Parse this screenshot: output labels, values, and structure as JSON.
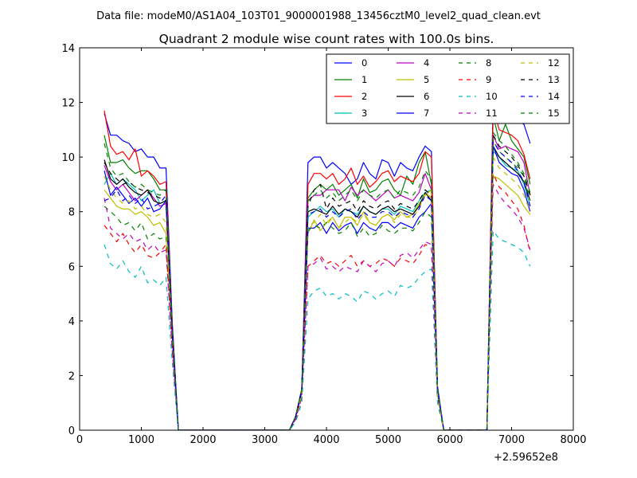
{
  "page": {
    "suptitle": "Data file: modeM0/AS1A04_103T01_9000001988_13456cztM0_level2_quad_clean.evt"
  },
  "chart_data": {
    "type": "line",
    "title": "Quadrant 2 module wise count rates with 100.0s bins.",
    "xlabel": "",
    "ylabel": "",
    "x_offset_label": "+2.59652e8",
    "xlim": [
      0,
      8000
    ],
    "ylim": [
      0,
      14
    ],
    "xticks": [
      0,
      1000,
      2000,
      3000,
      4000,
      5000,
      6000,
      7000,
      8000
    ],
    "yticks": [
      0,
      2,
      4,
      6,
      8,
      10,
      12,
      14
    ],
    "grid": false,
    "legend_placement": "top-right",
    "legend_columns": 4,
    "x": [
      400,
      500,
      600,
      700,
      800,
      900,
      1000,
      1100,
      1200,
      1300,
      1400,
      1500,
      1600,
      1700,
      1800,
      1900,
      2000,
      2100,
      2200,
      2300,
      2400,
      2500,
      2600,
      2700,
      2800,
      2900,
      3000,
      3100,
      3200,
      3300,
      3400,
      3500,
      3600,
      3700,
      3800,
      3900,
      4000,
      4100,
      4200,
      4300,
      4400,
      4500,
      4600,
      4700,
      4800,
      4900,
      5000,
      5100,
      5200,
      5300,
      5400,
      5500,
      5600,
      5700,
      5800,
      5900,
      6000,
      6100,
      6200,
      6300,
      6400,
      6500,
      6600,
      6700,
      6800,
      6900,
      7000,
      7100,
      7200,
      7300
    ],
    "series": [
      {
        "name": "0",
        "color": "#0000ff",
        "dash": "solid",
        "values": [
          11.6,
          10.8,
          10.8,
          10.6,
          10.5,
          10.2,
          10.3,
          10.0,
          10.0,
          9.6,
          9.6,
          4.0,
          0,
          0,
          0,
          0,
          0,
          0,
          0,
          0,
          0,
          0,
          0,
          0,
          0,
          0,
          0,
          0,
          0,
          0,
          0,
          0.5,
          1.5,
          9.8,
          10.0,
          10.0,
          9.6,
          9.8,
          9.6,
          9.4,
          9.0,
          9.2,
          9.8,
          9.4,
          9.2,
          9.9,
          9.8,
          9.3,
          9.8,
          9.6,
          9.5,
          10.0,
          10.4,
          10.2,
          1.6,
          0,
          0,
          0,
          0,
          0,
          0,
          0,
          0,
          12.1,
          12.0,
          11.8,
          11.5,
          11.3,
          11.2,
          10.5
        ]
      },
      {
        "name": "1",
        "color": "#008000",
        "dash": "solid",
        "values": [
          10.8,
          9.8,
          9.8,
          9.9,
          9.6,
          9.4,
          9.5,
          9.5,
          9.2,
          8.8,
          8.8,
          3.8,
          0,
          0,
          0,
          0,
          0,
          0,
          0,
          0,
          0,
          0,
          0,
          0,
          0,
          0,
          0,
          0,
          0,
          0,
          0,
          0.5,
          1.5,
          8.5,
          8.8,
          9.0,
          8.8,
          9.0,
          8.6,
          8.8,
          9.0,
          8.5,
          9.2,
          8.7,
          8.8,
          9.1,
          9.2,
          8.8,
          8.6,
          9.3,
          9.0,
          9.8,
          10.2,
          9.0,
          1.5,
          0,
          0,
          0,
          0,
          0,
          0,
          0,
          0,
          11.5,
          10.6,
          11.2,
          10.6,
          10.3,
          10.0,
          9.0
        ]
      },
      {
        "name": "2",
        "color": "#ff0000",
        "dash": "solid",
        "values": [
          11.7,
          10.4,
          10.1,
          10.2,
          9.9,
          10.3,
          9.3,
          9.5,
          9.3,
          9.0,
          9.1,
          3.8,
          0,
          0,
          0,
          0,
          0,
          0,
          0,
          0,
          0,
          0,
          0,
          0,
          0,
          0,
          0,
          0,
          0,
          0,
          0,
          0.5,
          1.5,
          9.0,
          9.4,
          9.4,
          9.2,
          9.4,
          9.0,
          9.2,
          9.6,
          9.0,
          9.3,
          8.9,
          9.1,
          9.4,
          9.5,
          9.1,
          9.3,
          9.2,
          9.1,
          9.4,
          10.2,
          10.0,
          1.5,
          0,
          0,
          0,
          0,
          0,
          0,
          0,
          0,
          11.8,
          11.0,
          10.9,
          10.8,
          10.6,
          10.1,
          9.2
        ]
      },
      {
        "name": "3",
        "color": "#00bfbf",
        "dash": "solid",
        "values": [
          9.0,
          9.4,
          9.0,
          9.2,
          9.0,
          8.8,
          8.4,
          8.6,
          8.8,
          8.3,
          8.4,
          3.6,
          0,
          0,
          0,
          0,
          0,
          0,
          0,
          0,
          0,
          0,
          0,
          0,
          0,
          0,
          0,
          0,
          0,
          0,
          0,
          0.5,
          1.5,
          7.8,
          8.0,
          8.2,
          8.0,
          8.1,
          7.8,
          8.1,
          8.0,
          7.9,
          8.2,
          8.0,
          7.9,
          8.1,
          8.1,
          7.9,
          8.2,
          8.1,
          8.0,
          8.4,
          8.7,
          8.8,
          1.5,
          0,
          0,
          0,
          0,
          0,
          0,
          0,
          0,
          10.2,
          10.0,
          9.7,
          9.6,
          9.5,
          9.0,
          8.2
        ]
      },
      {
        "name": "4",
        "color": "#bf00bf",
        "dash": "solid",
        "values": [
          9.7,
          9.1,
          8.8,
          9.0,
          8.7,
          8.4,
          8.6,
          8.8,
          8.5,
          8.2,
          8.3,
          3.6,
          0,
          0,
          0,
          0,
          0,
          0,
          0,
          0,
          0,
          0,
          0,
          0,
          0,
          0,
          0,
          0,
          0,
          0,
          0,
          0.5,
          1.4,
          8.4,
          8.6,
          8.6,
          8.8,
          8.8,
          8.8,
          8.4,
          8.9,
          8.6,
          8.8,
          8.6,
          8.4,
          8.6,
          8.8,
          8.5,
          8.6,
          8.5,
          8.4,
          8.7,
          9.4,
          8.8,
          1.4,
          0,
          0,
          0,
          0,
          0,
          0,
          0,
          0,
          10.8,
          10.3,
          10.4,
          10.3,
          10.2,
          9.8,
          8.6
        ]
      },
      {
        "name": "5",
        "color": "#bfbf00",
        "dash": "solid",
        "values": [
          8.8,
          8.5,
          8.2,
          8.1,
          8.1,
          7.9,
          8.0,
          7.8,
          7.5,
          7.6,
          7.2,
          3.4,
          0,
          0,
          0,
          0,
          0,
          0,
          0,
          0,
          0,
          0,
          0,
          0,
          0,
          0,
          0,
          0,
          0,
          0,
          0,
          0.5,
          1.4,
          7.2,
          7.7,
          7.3,
          7.6,
          7.8,
          7.4,
          7.8,
          7.8,
          7.5,
          8.0,
          7.6,
          7.5,
          7.8,
          7.9,
          7.7,
          8.0,
          7.8,
          7.9,
          8.3,
          8.6,
          8.8,
          1.4,
          0,
          0,
          0,
          0,
          0,
          0,
          0,
          0,
          9.3,
          9.2,
          9.0,
          8.8,
          8.6,
          8.2,
          7.9
        ]
      },
      {
        "name": "6",
        "color": "#000000",
        "dash": "solid",
        "values": [
          9.9,
          9.2,
          9.0,
          9.2,
          8.9,
          8.7,
          8.6,
          8.8,
          8.4,
          8.3,
          8.4,
          3.6,
          0,
          0,
          0,
          0,
          0,
          0,
          0,
          0,
          0,
          0,
          0,
          0,
          0,
          0,
          0,
          0,
          0,
          0,
          0,
          0.5,
          1.5,
          8.0,
          8.1,
          8.0,
          7.9,
          8.2,
          7.9,
          8.1,
          8.0,
          7.8,
          8.2,
          8.0,
          7.9,
          8.1,
          8.2,
          8.0,
          8.1,
          8.0,
          7.9,
          8.2,
          8.7,
          8.4,
          1.5,
          0,
          0,
          0,
          0,
          0,
          0,
          0,
          0,
          10.4,
          10.0,
          9.8,
          9.6,
          9.4,
          9.1,
          8.4
        ]
      },
      {
        "name": "7",
        "color": "#0000ff",
        "dash": "solid",
        "values": [
          9.5,
          8.6,
          8.9,
          8.6,
          8.3,
          8.5,
          8.2,
          8.5,
          8.0,
          8.1,
          8.4,
          3.5,
          0,
          0,
          0,
          0,
          0,
          0,
          0,
          0,
          0,
          0,
          0,
          0,
          0,
          0,
          0,
          0,
          0,
          0,
          0,
          0.5,
          1.4,
          7.4,
          7.4,
          7.6,
          7.2,
          7.6,
          7.3,
          7.5,
          7.6,
          7.2,
          7.6,
          7.4,
          7.3,
          7.6,
          7.6,
          7.4,
          7.6,
          7.5,
          7.4,
          7.8,
          8.0,
          8.3,
          1.4,
          0,
          0,
          0,
          0,
          0,
          0,
          0,
          0,
          10.4,
          9.8,
          9.6,
          9.4,
          9.3,
          8.8,
          8.0
        ]
      },
      {
        "name": "8",
        "color": "#008000",
        "dash": "dashed",
        "values": [
          8.2,
          8.0,
          7.8,
          7.5,
          7.6,
          7.3,
          7.6,
          7.0,
          7.2,
          7.0,
          7.1,
          3.2,
          0,
          0,
          0,
          0,
          0,
          0,
          0,
          0,
          0,
          0,
          0,
          0,
          0,
          0,
          0,
          0,
          0,
          0,
          0,
          0.4,
          1.3,
          7.3,
          7.5,
          7.4,
          7.6,
          7.4,
          7.2,
          7.3,
          7.6,
          7.1,
          7.4,
          7.1,
          7.2,
          7.5,
          7.3,
          7.2,
          7.4,
          7.4,
          7.3,
          7.6,
          8.0,
          7.8,
          1.3,
          0,
          0,
          0,
          0,
          0,
          0,
          0,
          0,
          10.6,
          10.2,
          10.0,
          9.8,
          9.6,
          9.3,
          8.4
        ]
      },
      {
        "name": "9",
        "color": "#ff0000",
        "dash": "dashed",
        "values": [
          7.5,
          7.2,
          6.9,
          7.2,
          6.8,
          6.5,
          6.8,
          6.4,
          6.3,
          6.5,
          6.8,
          3.0,
          0,
          0,
          0,
          0,
          0,
          0,
          0,
          0,
          0,
          0,
          0,
          0,
          0,
          0,
          0,
          0,
          0,
          0,
          0,
          0.4,
          1.2,
          6.0,
          6.2,
          6.4,
          6.1,
          6.2,
          6.0,
          6.2,
          6.4,
          6.0,
          6.2,
          6.0,
          6.1,
          6.3,
          6.2,
          6.0,
          6.3,
          6.2,
          6.1,
          6.4,
          6.8,
          6.7,
          1.2,
          0,
          0,
          0,
          0,
          0,
          0,
          0,
          0,
          9.4,
          8.9,
          8.7,
          8.4,
          8.1,
          7.5,
          6.5
        ]
      },
      {
        "name": "10",
        "color": "#00bfbf",
        "dash": "dashed",
        "values": [
          6.8,
          6.1,
          5.9,
          6.2,
          5.8,
          5.6,
          6.0,
          5.4,
          5.5,
          5.3,
          5.6,
          2.5,
          0,
          0,
          0,
          0,
          0,
          0,
          0,
          0,
          0,
          0,
          0,
          0,
          0,
          0,
          0,
          0,
          0,
          0,
          0,
          0.3,
          1.0,
          4.8,
          5.1,
          5.2,
          4.9,
          5.0,
          4.8,
          5.0,
          4.9,
          4.7,
          5.1,
          5.0,
          4.8,
          5.0,
          5.1,
          4.9,
          5.3,
          5.2,
          5.3,
          5.6,
          5.8,
          5.9,
          1.0,
          0,
          0,
          0,
          0,
          0,
          0,
          0,
          0,
          7.3,
          7.0,
          6.9,
          6.8,
          6.7,
          6.5,
          6.0
        ]
      },
      {
        "name": "11",
        "color": "#bf00bf",
        "dash": "dashed",
        "values": [
          8.5,
          7.4,
          7.2,
          7.0,
          7.2,
          6.9,
          7.0,
          6.6,
          6.8,
          6.5,
          6.6,
          2.9,
          0,
          0,
          0,
          0,
          0,
          0,
          0,
          0,
          0,
          0,
          0,
          0,
          0,
          0,
          0,
          0,
          0,
          0,
          0,
          0.4,
          1.2,
          6.0,
          6.1,
          6.3,
          5.9,
          6.0,
          5.8,
          6.0,
          5.9,
          5.8,
          6.2,
          6.0,
          5.8,
          6.1,
          6.2,
          6.0,
          6.4,
          6.5,
          6.3,
          6.6,
          6.9,
          6.8,
          1.2,
          0,
          0,
          0,
          0,
          0,
          0,
          0,
          0,
          9.0,
          8.6,
          8.3,
          8.1,
          7.8,
          7.4,
          6.6
        ]
      },
      {
        "name": "12",
        "color": "#bfbf00",
        "dash": "dashed",
        "values": [
          9.3,
          8.8,
          8.5,
          8.3,
          8.4,
          8.1,
          8.2,
          7.9,
          7.8,
          7.9,
          7.6,
          3.4,
          0,
          0,
          0,
          0,
          0,
          0,
          0,
          0,
          0,
          0,
          0,
          0,
          0,
          0,
          0,
          0,
          0,
          0,
          0,
          0.5,
          1.3,
          7.5,
          7.6,
          7.9,
          7.5,
          7.8,
          7.4,
          7.6,
          7.8,
          7.6,
          7.9,
          7.6,
          7.5,
          7.8,
          7.9,
          7.6,
          7.9,
          7.8,
          7.8,
          8.1,
          8.7,
          8.5,
          1.3,
          0,
          0,
          0,
          0,
          0,
          0,
          0,
          0,
          10.0,
          9.6,
          9.4,
          9.2,
          9.0,
          8.6,
          8.0
        ]
      },
      {
        "name": "13",
        "color": "#000000",
        "dash": "dashed",
        "values": [
          9.8,
          9.4,
          9.2,
          9.0,
          9.1,
          8.9,
          8.8,
          8.7,
          8.6,
          8.5,
          8.4,
          3.6,
          0,
          0,
          0,
          0,
          0,
          0,
          0,
          0,
          0,
          0,
          0,
          0,
          0,
          0,
          0,
          0,
          0,
          0,
          0,
          0.5,
          1.5,
          8.2,
          8.8,
          9.0,
          8.1,
          8.5,
          8.2,
          8.3,
          8.4,
          8.0,
          8.4,
          8.2,
          8.1,
          8.3,
          8.4,
          8.1,
          8.3,
          8.2,
          8.1,
          8.4,
          8.8,
          8.6,
          1.5,
          0,
          0,
          0,
          0,
          0,
          0,
          0,
          0,
          10.8,
          10.4,
          10.2,
          10.0,
          9.7,
          9.3,
          8.6
        ]
      },
      {
        "name": "14",
        "color": "#0000ff",
        "dash": "dashed",
        "values": [
          8.4,
          8.5,
          8.8,
          8.4,
          8.6,
          8.3,
          8.5,
          8.1,
          8.2,
          8.3,
          8.6,
          3.6,
          0,
          0,
          0,
          0,
          0,
          0,
          0,
          0,
          0,
          0,
          0,
          0,
          0,
          0,
          0,
          0,
          0,
          0,
          0,
          0.5,
          1.5,
          7.9,
          8.0,
          8.1,
          7.8,
          8.0,
          7.8,
          8.0,
          8.1,
          7.7,
          8.0,
          7.8,
          7.8,
          8.0,
          8.0,
          7.8,
          8.0,
          7.9,
          7.8,
          8.1,
          8.6,
          8.4,
          1.5,
          0,
          0,
          0,
          0,
          0,
          0,
          0,
          0,
          10.6,
          10.2,
          10.0,
          9.8,
          9.5,
          9.1,
          8.2
        ]
      },
      {
        "name": "15",
        "color": "#008000",
        "dash": "dashed",
        "values": [
          10.5,
          9.6,
          9.3,
          9.4,
          9.1,
          8.9,
          9.0,
          8.8,
          8.7,
          8.6,
          8.8,
          3.7,
          0,
          0,
          0,
          0,
          0,
          0,
          0,
          0,
          0,
          0,
          0,
          0,
          0,
          0,
          0,
          0,
          0,
          0,
          0,
          0.5,
          1.5,
          8.4,
          8.6,
          8.8,
          8.5,
          8.7,
          8.4,
          8.6,
          8.8,
          8.4,
          8.8,
          8.6,
          8.5,
          8.7,
          8.8,
          8.5,
          8.8,
          8.7,
          8.6,
          8.9,
          9.5,
          9.2,
          1.5,
          0,
          0,
          0,
          0,
          0,
          0,
          0,
          0,
          10.9,
          10.6,
          10.4,
          10.1,
          9.8,
          9.4,
          8.7
        ]
      }
    ]
  }
}
